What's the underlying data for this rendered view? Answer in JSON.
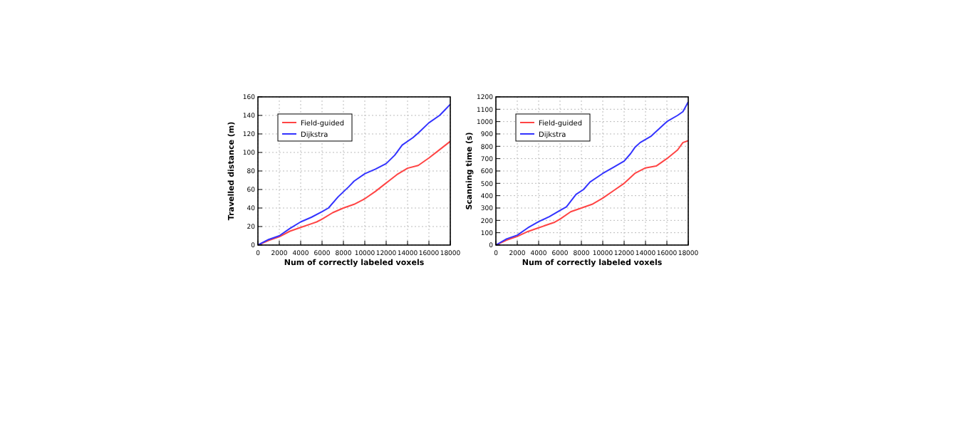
{
  "chart_data": [
    {
      "type": "line",
      "xlabel": "Num of correctly labeled voxels",
      "ylabel": "Travelled distance (m)",
      "x": [
        0,
        1000,
        2000,
        3000,
        4000,
        5000,
        5500,
        6000,
        7000,
        8000,
        9000,
        10000,
        11000,
        12000,
        13000,
        14000,
        15000,
        16000,
        17000,
        18000
      ],
      "series": [
        {
          "name": "Field-guided",
          "color": "#ff4444",
          "values": [
            0,
            5,
            9,
            15,
            19,
            23,
            25,
            28,
            35,
            40,
            44,
            50,
            58,
            67,
            76,
            83,
            86,
            94,
            103,
            112
          ]
        },
        {
          "name": "Dijkstra",
          "color": "#3333ff",
          "x": [
            0,
            1000,
            2000,
            3000,
            4000,
            5000,
            6000,
            6600,
            7500,
            8500,
            9000,
            10000,
            11000,
            12000,
            12800,
            13500,
            14500,
            15000,
            16000,
            17000,
            17500,
            18000
          ],
          "values": [
            0,
            6,
            10,
            18,
            25,
            30,
            36,
            40,
            52,
            63,
            69,
            77,
            82,
            88,
            97,
            108,
            116,
            121,
            132,
            140,
            146,
            152
          ]
        }
      ],
      "xlim": [
        0,
        18000
      ],
      "xticks": [
        0,
        2000,
        4000,
        6000,
        8000,
        10000,
        12000,
        14000,
        16000,
        18000
      ],
      "ylim": [
        0,
        160
      ],
      "yticks": [
        0,
        20,
        40,
        60,
        80,
        100,
        120,
        140,
        160
      ],
      "grid": true,
      "legend": "top left",
      "line_style": "solid"
    },
    {
      "type": "line",
      "xlabel": "Num of correctly labeled voxels",
      "ylabel": "Scanning time (s)",
      "x": [
        0,
        1000,
        2000,
        3000,
        4000,
        5000,
        5500,
        6000,
        7000,
        8000,
        9000,
        10000,
        11000,
        12000,
        13000,
        14000,
        15000,
        16000,
        17000,
        17500,
        18000
      ],
      "series": [
        {
          "name": "Field-guided",
          "color": "#ff4444",
          "values": [
            0,
            40,
            70,
            110,
            140,
            170,
            185,
            210,
            270,
            300,
            330,
            380,
            440,
            500,
            580,
            625,
            640,
            700,
            770,
            830,
            845
          ]
        },
        {
          "name": "Dijkstra",
          "color": "#3333ff",
          "x": [
            0,
            1000,
            2000,
            3000,
            4000,
            5000,
            6000,
            6600,
            7500,
            8200,
            8800,
            10000,
            11000,
            12000,
            12600,
            13000,
            13500,
            14500,
            15000,
            16000,
            17000,
            17500,
            18000
          ],
          "values": [
            0,
            50,
            80,
            140,
            190,
            230,
            280,
            310,
            410,
            450,
            510,
            580,
            630,
            680,
            740,
            790,
            830,
            880,
            920,
            1000,
            1050,
            1080,
            1160
          ]
        }
      ],
      "xlim": [
        0,
        18000
      ],
      "xticks": [
        0,
        2000,
        4000,
        6000,
        8000,
        10000,
        12000,
        14000,
        16000,
        18000
      ],
      "ylim": [
        0,
        1200
      ],
      "yticks": [
        0,
        100,
        200,
        300,
        400,
        500,
        600,
        700,
        800,
        900,
        1000,
        1100,
        1200
      ],
      "grid": true,
      "legend": "top left",
      "line_style": "solid"
    }
  ]
}
